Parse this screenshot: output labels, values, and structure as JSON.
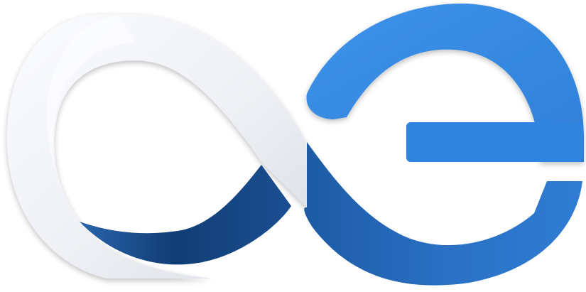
{
  "logo": {
    "name": "ae-infinity-logo",
    "colors": {
      "silver_light": "#f4f6fa",
      "silver_mid": "#e3e6ee",
      "silver_shade": "#c8ccd6",
      "navy_dark": "#0f3a6e",
      "navy_mid": "#1c5499",
      "blue_mid": "#2a6fc4",
      "blue_bright": "#3a8fe6",
      "blue_light": "#4ea2f2"
    }
  }
}
